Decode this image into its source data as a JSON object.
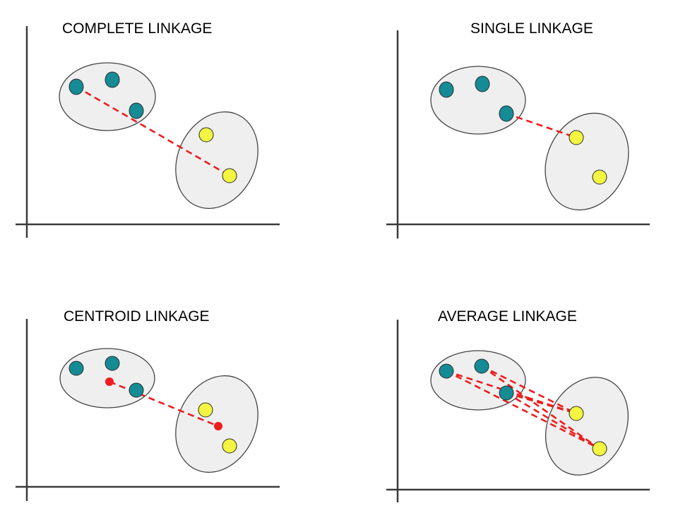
{
  "colors": {
    "cluster_a_point": "#158b96",
    "cluster_b_point": "#f3f540",
    "linkage_line": "#ee1c1c",
    "centroid": "#ee1c1c",
    "cluster_fill": "#efefef"
  },
  "panels": [
    {
      "id": "complete",
      "title": "COMPLETE LINKAGE"
    },
    {
      "id": "single",
      "title": "SINGLE LINKAGE"
    },
    {
      "id": "centroid",
      "title": "CENTROID LINKAGE"
    },
    {
      "id": "average",
      "title": "AVERAGE LINKAGE"
    }
  ]
}
